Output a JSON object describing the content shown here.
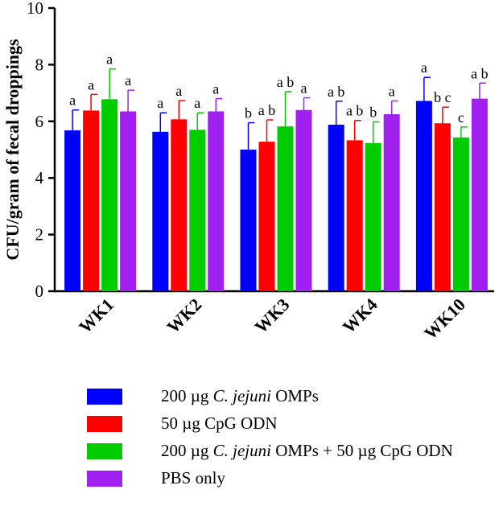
{
  "chart_data": {
    "type": "bar",
    "ylabel": "CFU/gram of fecal droppings",
    "xlabel": "",
    "ylim": [
      0,
      10
    ],
    "yticks": [
      "0",
      "2",
      "4",
      "6",
      "8",
      "10"
    ],
    "categories": [
      "WK1",
      "WK2",
      "WK3",
      "WK4",
      "WK10"
    ],
    "series": [
      {
        "name": "200 µg C. jejuni OMPs",
        "color": "#0000ff",
        "values": [
          5.68,
          5.63,
          5.0,
          5.88,
          6.72
        ],
        "errors": [
          0.72,
          0.67,
          0.95,
          0.83,
          0.83
        ],
        "letters": [
          "a",
          "a",
          "b",
          "a b",
          "a"
        ]
      },
      {
        "name": "50 µg CpG ODN",
        "color": "#ff0000",
        "values": [
          6.38,
          6.07,
          5.28,
          5.33,
          5.93
        ],
        "errors": [
          0.57,
          0.66,
          0.77,
          0.7,
          0.57
        ],
        "letters": [
          "a",
          "a",
          "a b",
          "a b",
          "b c"
        ]
      },
      {
        "name": "200 µg C. jejuni OMPs + 50 µg CpG ODN",
        "color": "#00cc00",
        "values": [
          6.78,
          5.7,
          5.82,
          5.23,
          5.43
        ],
        "errors": [
          1.07,
          0.6,
          1.23,
          0.75,
          0.37
        ],
        "letters": [
          "a",
          "a",
          "a b",
          "b",
          "c"
        ]
      },
      {
        "name": "PBS only",
        "color": "#a020f0",
        "values": [
          6.35,
          6.35,
          6.4,
          6.25,
          6.8
        ],
        "errors": [
          0.75,
          0.45,
          0.43,
          0.47,
          0.55
        ],
        "letters": [
          "a",
          "a",
          "a",
          "a",
          "a b"
        ]
      }
    ],
    "legend": [
      {
        "pre": "200 µg ",
        "ital": "C. jejuni",
        "post": " OMPs"
      },
      {
        "pre": "50 µg CpG ODN",
        "ital": "",
        "post": ""
      },
      {
        "pre": "200 µg ",
        "ital": "C. jejuni",
        "post": " OMPs + 50 µg CpG ODN"
      },
      {
        "pre": "PBS only",
        "ital": "",
        "post": ""
      }
    ],
    "legend_position": "bottom"
  }
}
